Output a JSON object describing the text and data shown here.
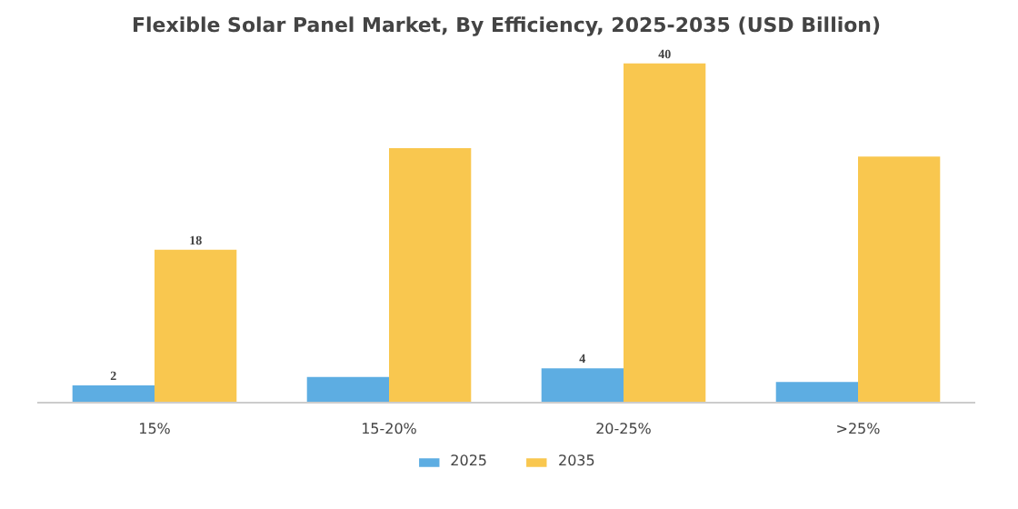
{
  "chart_data": {
    "type": "bar",
    "title": "Flexible Solar Panel Market, By Efficiency, 2025-2035 (USD Billion)",
    "categories": [
      "15%",
      "15-20%",
      "20-25%",
      ">25%"
    ],
    "series": [
      {
        "name": "2025",
        "color": "#5dade2",
        "values": [
          2,
          3,
          4,
          2.4
        ],
        "value_labels": [
          "2",
          null,
          "4",
          null
        ]
      },
      {
        "name": "2035",
        "color": "#f9c74f",
        "values": [
          18,
          30,
          40,
          29
        ],
        "value_labels": [
          "18",
          null,
          "40",
          null
        ]
      }
    ],
    "legend": "bottom"
  }
}
